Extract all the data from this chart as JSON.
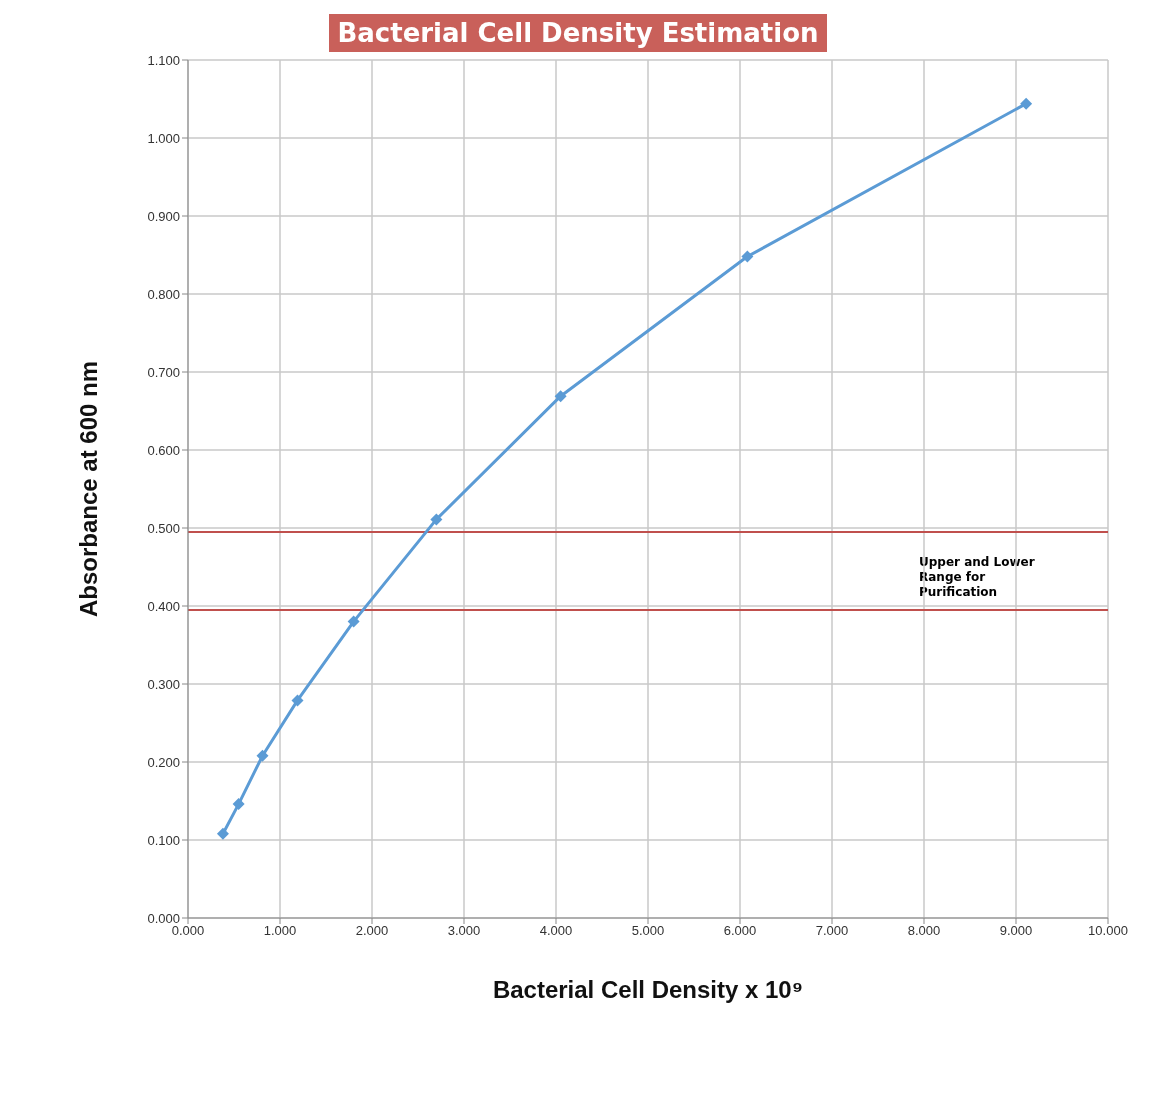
{
  "chart_data": {
    "type": "line",
    "title": "Bacterial Cell Density Estimation",
    "xlabel": "Bacterial Cell Density x 10⁹",
    "ylabel": "Absorbance at 600 nm",
    "x": [
      0.38,
      0.55,
      0.81,
      1.19,
      1.8,
      2.7,
      4.05,
      6.08,
      9.11
    ],
    "series": [
      {
        "color": "#5b9bd5",
        "values": [
          0.108,
          0.146,
          0.208,
          0.279,
          0.38,
          0.511,
          0.669,
          0.848,
          1.044
        ]
      }
    ],
    "xlim": [
      0,
      10
    ],
    "ylim": [
      0,
      1.1
    ],
    "xticks": [
      {
        "value": 0,
        "label": "0.000"
      },
      {
        "value": 1,
        "label": "1.000"
      },
      {
        "value": 2,
        "label": "2.000"
      },
      {
        "value": 3,
        "label": "3.000"
      },
      {
        "value": 4,
        "label": "4.000"
      },
      {
        "value": 5,
        "label": "5.000"
      },
      {
        "value": 6,
        "label": "6.000"
      },
      {
        "value": 7,
        "label": "7.000"
      },
      {
        "value": 8,
        "label": "8.000"
      },
      {
        "value": 9,
        "label": "9.000"
      },
      {
        "value": 10,
        "label": "10.000"
      }
    ],
    "yticks": [
      {
        "value": 0,
        "label": "0.000"
      },
      {
        "value": 0.1,
        "label": "0.100"
      },
      {
        "value": 0.2,
        "label": "0.200"
      },
      {
        "value": 0.3,
        "label": "0.300"
      },
      {
        "value": 0.4,
        "label": "0.400"
      },
      {
        "value": 0.5,
        "label": "0.500"
      },
      {
        "value": 0.6,
        "label": "0.600"
      },
      {
        "value": 0.7,
        "label": "0.700"
      },
      {
        "value": 0.8,
        "label": "0.800"
      },
      {
        "value": 0.9,
        "label": "0.900"
      },
      {
        "value": 1,
        "label": "1.000"
      },
      {
        "value": 1.1,
        "label": "1.100"
      }
    ],
    "ref_lines": [
      {
        "axis": "y",
        "value": 0.495,
        "color": "#c0504d"
      },
      {
        "axis": "y",
        "value": 0.395,
        "color": "#c0504d"
      }
    ],
    "annotations": [
      "Upper and Lower Range for Purification"
    ],
    "grid": true,
    "marker": "diamond",
    "line_style": "solid"
  }
}
